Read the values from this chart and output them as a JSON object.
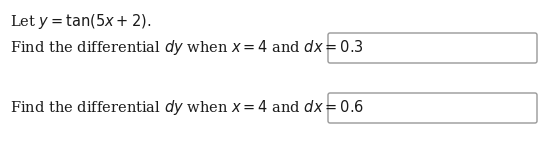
{
  "line1": "Let $y = \\mathrm{tan}(5x + 2).$",
  "line2": "Find the differential $dy$ when $x = 4$ and $dx = 0.3$",
  "line3": "Find the differential $dy$ when $x = 4$ and $dx = 0.6$",
  "background_color": "#ffffff",
  "text_color": "#1a1a1a",
  "box_edge_color": "#999999",
  "font_size": 10.5,
  "fig_width": 5.45,
  "fig_height": 1.44,
  "dpi": 100
}
